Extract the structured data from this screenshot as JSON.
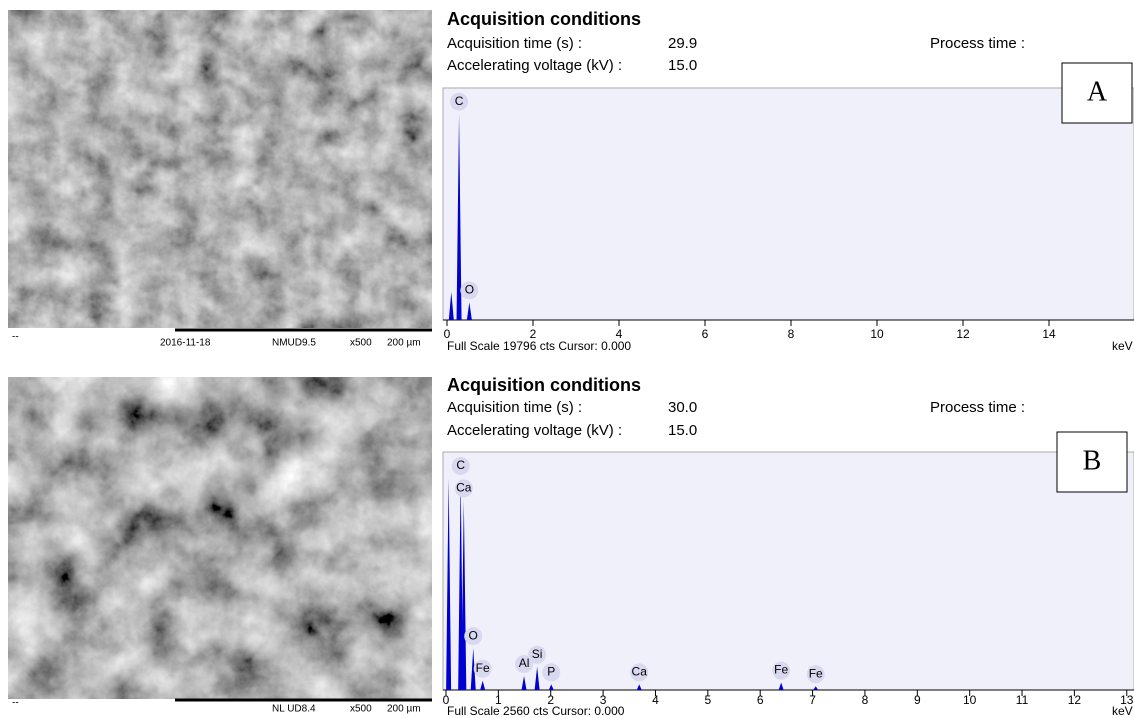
{
  "panels": [
    {
      "sem": {
        "corner": "--",
        "date": "2016-11-18",
        "sample": "NMUD9.5",
        "magnification": "x500",
        "scale": "200 µm"
      },
      "letter": "A",
      "acquisition": {
        "title": "Acquisition conditions",
        "rows": [
          [
            "Acquisition time (s) :",
            "29.9"
          ],
          [
            "Accelerating voltage (kV) :",
            "15.0"
          ]
        ],
        "process": "Process time :"
      },
      "footer": "Full Scale 19796 cts Cursor: 0.000"
    },
    {
      "sem": {
        "corner": "--",
        "date": null,
        "sample": "NL UD8.4",
        "magnification": "x500",
        "scale": "200 µm"
      },
      "letter": "B",
      "acquisition": {
        "title": "Acquisition conditions",
        "rows": [
          [
            "Acquisition time (s) :",
            "30.0"
          ],
          [
            "Accelerating voltage (kV) :",
            "15.0"
          ]
        ],
        "process": "Process time :"
      },
      "footer": "Full Scale 2560 cts Cursor: 0.000"
    }
  ],
  "chart_data": [
    {
      "type": "spectrum",
      "xlabel": "keV",
      "color": "#0000d0",
      "x": [
        0.1,
        0.28,
        0.52
      ],
      "values": [
        2400,
        17600,
        1500
      ],
      "labels": [
        null,
        "C",
        "O"
      ],
      "xlim": [
        0,
        16
      ],
      "ylim": [
        0,
        19796
      ],
      "xticks": [
        0,
        2,
        4,
        6,
        8,
        10,
        12,
        14
      ]
    },
    {
      "type": "spectrum",
      "xlabel": "keV",
      "color": "#0000d0",
      "x": [
        0.05,
        0.28,
        0.34,
        0.52,
        0.7,
        1.49,
        1.74,
        2.01,
        3.69,
        6.4,
        7.06
      ],
      "values": [
        2280,
        2280,
        2040,
        450,
        100,
        150,
        250,
        60,
        60,
        80,
        40
      ],
      "labels": [
        null,
        "C",
        "Ca",
        "O",
        "Fe",
        "Al",
        "Si",
        "P",
        "Ca",
        "Fe",
        "Fe"
      ],
      "xlim": [
        0,
        13.1
      ],
      "ylim": [
        0,
        2560
      ],
      "xticks": [
        0,
        1,
        2,
        3,
        4,
        5,
        6,
        7,
        8,
        9,
        10,
        11,
        12,
        13
      ]
    }
  ]
}
